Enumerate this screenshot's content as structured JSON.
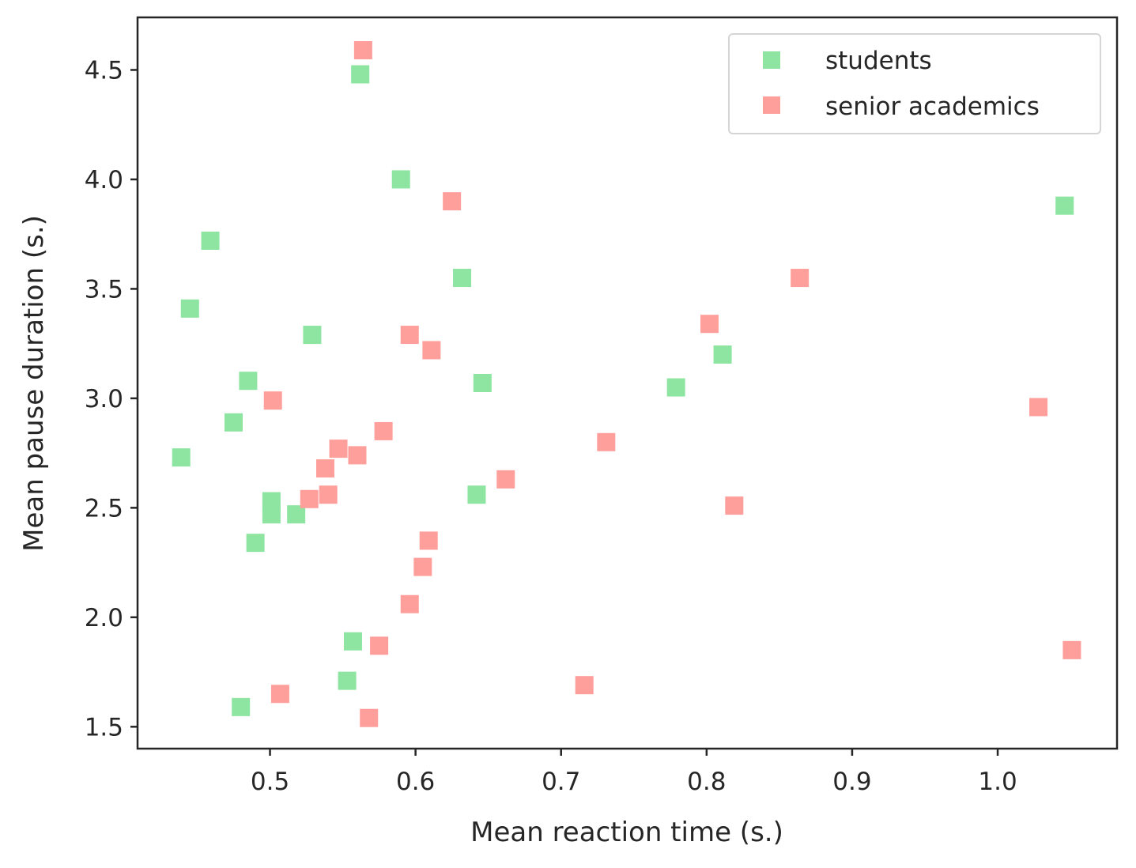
{
  "chart_data": {
    "type": "scatter",
    "title": "",
    "xlabel": "Mean reaction time (s.)",
    "ylabel": "Mean pause duration (s.)",
    "xlim": [
      0.409,
      1.082
    ],
    "ylim": [
      1.4,
      4.74
    ],
    "xticks": [
      0.5,
      0.6,
      0.7,
      0.8,
      0.9,
      1.0
    ],
    "xtick_labels": [
      "0.5",
      "0.6",
      "0.7",
      "0.8",
      "0.9",
      "1.0"
    ],
    "yticks": [
      1.5,
      2.0,
      2.5,
      3.0,
      3.5,
      4.0,
      4.5
    ],
    "ytick_labels": [
      "1.5",
      "2.0",
      "2.5",
      "3.0",
      "3.5",
      "4.0",
      "4.5"
    ],
    "marker": "square",
    "grid": false,
    "legend_position": "top-right",
    "series": [
      {
        "name": "students",
        "color": "#8de5a1",
        "points": [
          [
            0.562,
            4.48
          ],
          [
            0.59,
            4.0
          ],
          [
            1.046,
            3.88
          ],
          [
            0.459,
            3.72
          ],
          [
            0.632,
            3.55
          ],
          [
            0.445,
            3.41
          ],
          [
            0.529,
            3.29
          ],
          [
            0.811,
            3.2
          ],
          [
            0.485,
            3.08
          ],
          [
            0.646,
            3.07
          ],
          [
            0.779,
            3.05
          ],
          [
            0.475,
            2.89
          ],
          [
            0.439,
            2.73
          ],
          [
            0.642,
            2.56
          ],
          [
            0.501,
            2.53
          ],
          [
            0.501,
            2.47
          ],
          [
            0.518,
            2.47
          ],
          [
            0.49,
            2.34
          ],
          [
            0.557,
            1.89
          ],
          [
            0.553,
            1.71
          ],
          [
            0.48,
            1.59
          ]
        ]
      },
      {
        "name": "senior academics",
        "color": "#ff9f9b",
        "points": [
          [
            0.564,
            4.59
          ],
          [
            0.625,
            3.9
          ],
          [
            0.864,
            3.55
          ],
          [
            0.802,
            3.34
          ],
          [
            0.596,
            3.29
          ],
          [
            0.611,
            3.22
          ],
          [
            0.502,
            2.99
          ],
          [
            1.028,
            2.96
          ],
          [
            0.578,
            2.85
          ],
          [
            0.731,
            2.8
          ],
          [
            0.547,
            2.77
          ],
          [
            0.56,
            2.74
          ],
          [
            0.538,
            2.68
          ],
          [
            0.662,
            2.63
          ],
          [
            0.54,
            2.56
          ],
          [
            0.527,
            2.54
          ],
          [
            0.819,
            2.51
          ],
          [
            0.609,
            2.35
          ],
          [
            0.605,
            2.23
          ],
          [
            0.596,
            2.06
          ],
          [
            0.575,
            1.87
          ],
          [
            1.051,
            1.85
          ],
          [
            0.716,
            1.69
          ],
          [
            0.507,
            1.65
          ],
          [
            0.568,
            1.54
          ]
        ]
      }
    ]
  }
}
